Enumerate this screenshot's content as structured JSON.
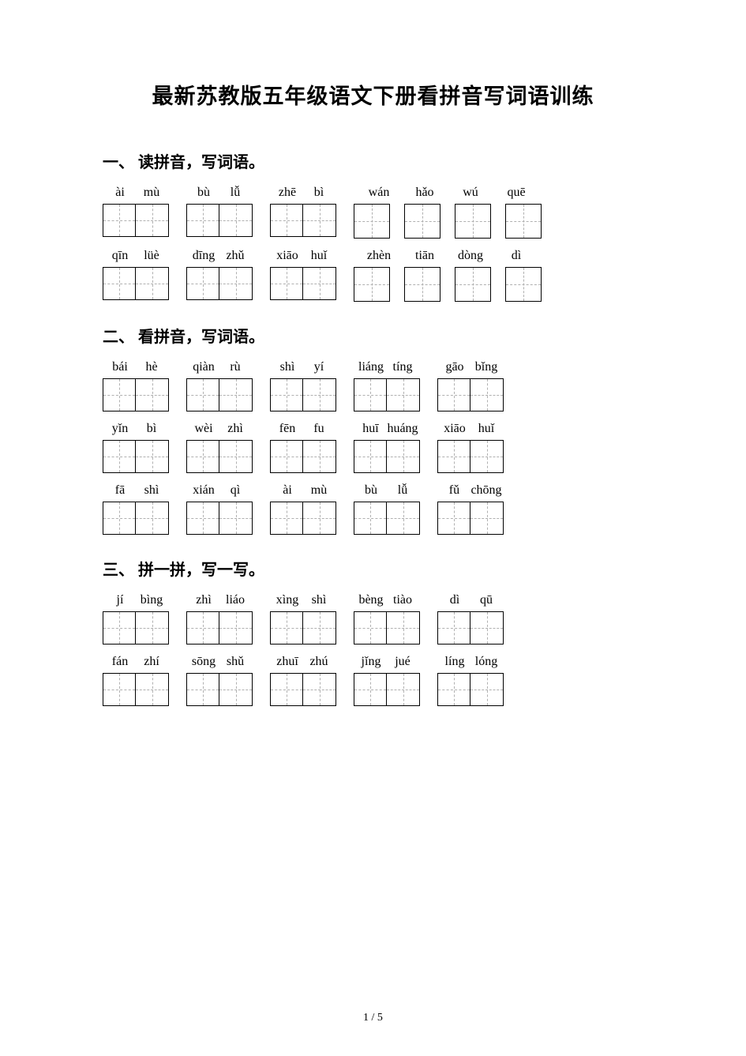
{
  "title": "最新苏教版五年级语文下册看拼音写词语训练",
  "page_number": "1 / 5",
  "sections": [
    {
      "heading": "一、 读拼音，写词语。",
      "rows": [
        {
          "type": "mixed",
          "items": [
            {
              "syllables": [
                "ài",
                "mù"
              ],
              "cells": 2
            },
            {
              "syllables": [
                "bù",
                "lǚ"
              ],
              "cells": 2
            },
            {
              "syllables": [
                "zhē",
                "bì"
              ],
              "cells": 2
            },
            {
              "syllables": [
                "wán",
                "hǎo",
                "wú",
                "quē"
              ],
              "cells": 4,
              "four": true
            }
          ]
        },
        {
          "type": "mixed",
          "items": [
            {
              "syllables": [
                "qīn",
                "lüè"
              ],
              "cells": 2
            },
            {
              "syllables": [
                "dīng",
                "zhǔ"
              ],
              "cells": 2
            },
            {
              "syllables": [
                "xiāo",
                "huǐ"
              ],
              "cells": 2
            },
            {
              "syllables": [
                "zhèn",
                "tiān",
                "dòng",
                "dì"
              ],
              "cells": 4,
              "four": true
            }
          ]
        }
      ]
    },
    {
      "heading": "二、 看拼音，写词语。",
      "rows": [
        {
          "items": [
            {
              "syllables": [
                "bái",
                "hè"
              ],
              "cells": 2
            },
            {
              "syllables": [
                "qiàn",
                "rù"
              ],
              "cells": 2
            },
            {
              "syllables": [
                "shì",
                "yí"
              ],
              "cells": 2
            },
            {
              "syllables": [
                "liáng",
                "tíng"
              ],
              "cells": 2
            },
            {
              "syllables": [
                "gāo",
                "bǐng"
              ],
              "cells": 2
            }
          ]
        },
        {
          "items": [
            {
              "syllables": [
                "yǐn",
                "bì"
              ],
              "cells": 2
            },
            {
              "syllables": [
                "wèi",
                "zhì"
              ],
              "cells": 2
            },
            {
              "syllables": [
                "fēn",
                "fu"
              ],
              "cells": 2
            },
            {
              "syllables": [
                "huī",
                "huáng"
              ],
              "cells": 2
            },
            {
              "syllables": [
                "xiāo",
                "huǐ"
              ],
              "cells": 2
            }
          ]
        },
        {
          "items": [
            {
              "syllables": [
                "fā",
                "shì"
              ],
              "cells": 2
            },
            {
              "syllables": [
                "xián",
                "qì"
              ],
              "cells": 2
            },
            {
              "syllables": [
                "ài",
                "mù"
              ],
              "cells": 2
            },
            {
              "syllables": [
                "bù",
                "lǚ"
              ],
              "cells": 2
            },
            {
              "syllables": [
                "fǔ",
                "chōng"
              ],
              "cells": 2
            }
          ]
        }
      ]
    },
    {
      "heading": "三、 拼一拼，写一写。",
      "rows": [
        {
          "items": [
            {
              "syllables": [
                "jí",
                "bìng"
              ],
              "cells": 2
            },
            {
              "syllables": [
                "zhì",
                "liáo"
              ],
              "cells": 2
            },
            {
              "syllables": [
                "xìng",
                "shì"
              ],
              "cells": 2
            },
            {
              "syllables": [
                "bèng",
                "tiào"
              ],
              "cells": 2
            },
            {
              "syllables": [
                "dì",
                "qū"
              ],
              "cells": 2
            }
          ]
        },
        {
          "items": [
            {
              "syllables": [
                "fán",
                "zhí"
              ],
              "cells": 2
            },
            {
              "syllables": [
                "sōng",
                "shǔ"
              ],
              "cells": 2
            },
            {
              "syllables": [
                "zhuī",
                "zhú"
              ],
              "cells": 2
            },
            {
              "syllables": [
                "jǐng",
                "jué"
              ],
              "cells": 2
            },
            {
              "syllables": [
                "líng",
                "lóng"
              ],
              "cells": 2
            }
          ]
        }
      ]
    }
  ]
}
